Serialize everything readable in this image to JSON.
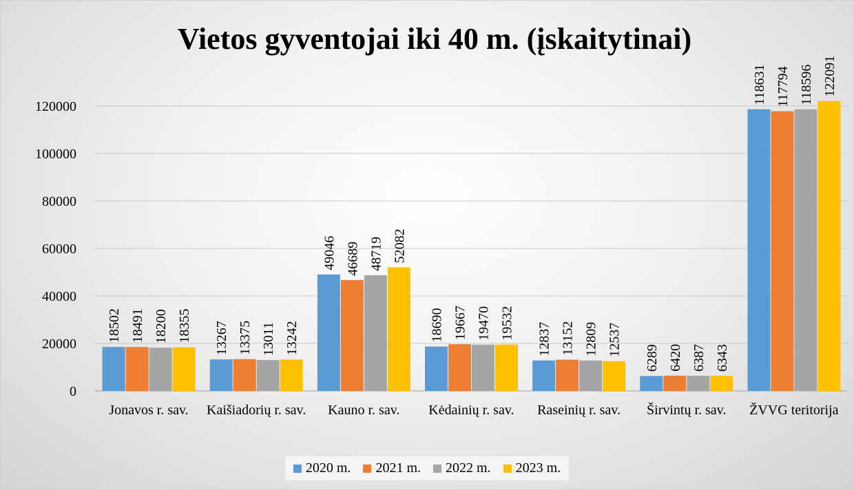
{
  "chart_data": {
    "type": "bar",
    "title": "Vietos gyventojai iki 40 m. (įskaitytinai)",
    "categories": [
      "Jonavos r. sav.",
      "Kaišiadorių r. sav.",
      "Kauno r. sav.",
      "Kėdainių r. sav.",
      "Raseinių r. sav.",
      "Širvintų r. sav.",
      "ŽVVG teritorija"
    ],
    "series": [
      {
        "name": "2020 m.",
        "color": "#5b9bd5",
        "values": [
          18502,
          13267,
          49046,
          18690,
          12837,
          6289,
          118631
        ]
      },
      {
        "name": "2021 m.",
        "color": "#ed7d31",
        "values": [
          18491,
          13375,
          46689,
          19667,
          13152,
          6420,
          117794
        ]
      },
      {
        "name": "2022 m.",
        "color": "#a5a5a5",
        "values": [
          18200,
          13011,
          48719,
          19470,
          12809,
          6387,
          118596
        ]
      },
      {
        "name": "2023 m.",
        "color": "#ffc000",
        "values": [
          18355,
          13242,
          52082,
          19532,
          12537,
          6343,
          122091
        ]
      }
    ],
    "ylim": [
      0,
      120000
    ],
    "yticks": [
      0,
      20000,
      40000,
      60000,
      80000,
      100000,
      120000
    ],
    "grid": true,
    "legend": "bottom"
  }
}
